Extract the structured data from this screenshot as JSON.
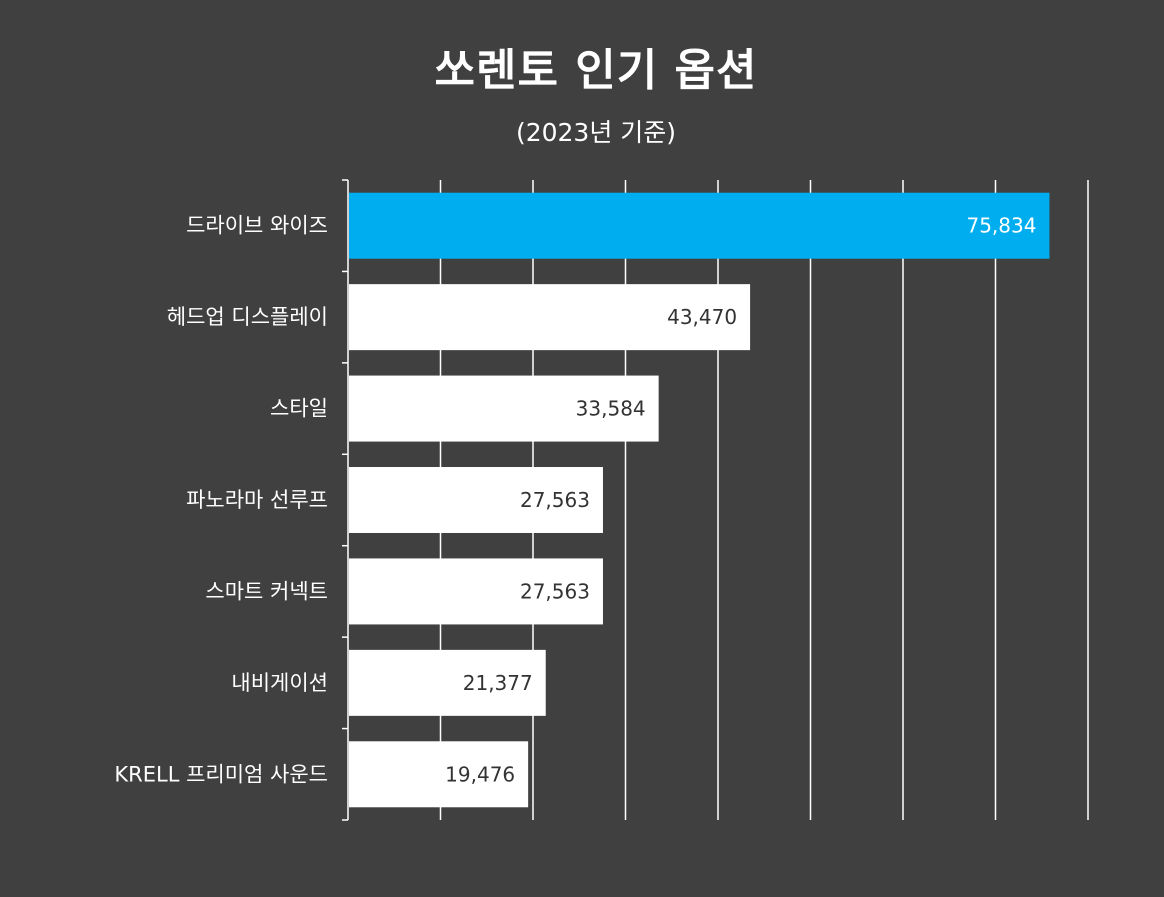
{
  "chart_data": {
    "type": "bar",
    "orientation": "horizontal",
    "title": "쏘렌토 인기 옵션",
    "subtitle": "(2023년 기준)",
    "categories": [
      "드라이브 와이즈",
      "헤드업 디스플레이",
      "스타일",
      "파노라마 선루프",
      "스마트 커넥트",
      "내비게이션",
      "KRELL 프리미엄 사운드"
    ],
    "values": [
      75834,
      43470,
      33584,
      27563,
      27563,
      21377,
      19476
    ],
    "value_labels": [
      "75,834",
      "43,470",
      "33,584",
      "27,563",
      "27,563",
      "21,377",
      "19,476"
    ],
    "xlim": [
      0,
      80000
    ],
    "grid": true,
    "highlight_index": 0,
    "colors": {
      "background": "#404040",
      "highlight": "#00aeef",
      "bar": "#ffffff",
      "grid": "#ffffff",
      "category_text": "#ffffff",
      "highlight_label": "#ffffff",
      "bar_label": "#333333"
    }
  }
}
